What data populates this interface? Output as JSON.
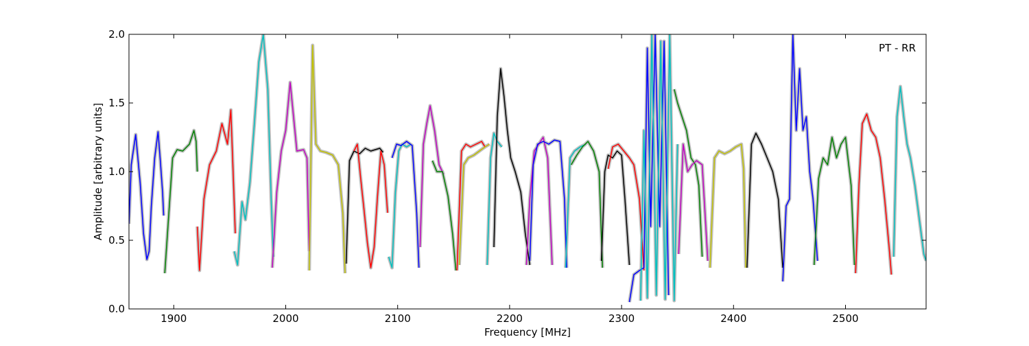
{
  "chart_data": {
    "type": "line",
    "title": "",
    "annotation": "PT - RR",
    "xlabel": "Frequency [MHz]",
    "ylabel": "Amplitude [arbitrary units]",
    "xlim": [
      1860,
      2572
    ],
    "ylim": [
      0.0,
      2.0
    ],
    "x_ticks": [
      1900,
      2000,
      2100,
      2200,
      2300,
      2400,
      2500
    ],
    "y_ticks": [
      "0.0",
      "0.5",
      "1.0",
      "1.5",
      "2.0"
    ],
    "grid": false,
    "background_color": "#c0c0c0",
    "series": [
      {
        "color": "#0000ff",
        "x": [
          1860,
          1862,
          1866,
          1870,
          1873,
          1876,
          1878,
          1880,
          1883,
          1886,
          1888,
          1890,
          1891
        ],
        "y": [
          0.62,
          1.05,
          1.27,
          0.92,
          0.55,
          0.36,
          0.42,
          0.75,
          1.1,
          1.29,
          1.08,
          0.85,
          0.68
        ]
      },
      {
        "color": "#008000",
        "x": [
          1892,
          1895,
          1899,
          1903,
          1908,
          1914,
          1918,
          1920,
          1921
        ],
        "y": [
          0.26,
          0.62,
          1.1,
          1.16,
          1.15,
          1.2,
          1.3,
          1.22,
          1.0
        ]
      },
      {
        "color": "#ff0000",
        "x": [
          1921,
          1923,
          1927,
          1932,
          1938,
          1943,
          1948,
          1951,
          1953,
          1955
        ],
        "y": [
          0.6,
          0.28,
          0.8,
          1.05,
          1.15,
          1.35,
          1.2,
          1.45,
          1.0,
          0.55
        ]
      },
      {
        "color": "#00bfbf",
        "x": [
          1954,
          1957,
          1961,
          1964,
          1968,
          1972,
          1976,
          1980,
          1984,
          1987,
          1989
        ],
        "y": [
          0.42,
          0.32,
          0.78,
          0.65,
          0.92,
          1.35,
          1.8,
          2.0,
          1.6,
          0.8,
          0.38
        ]
      },
      {
        "color": "#bf00bf",
        "x": [
          1988,
          1992,
          1996,
          2000,
          2004,
          2010,
          2016,
          2019,
          2021
        ],
        "y": [
          0.3,
          0.85,
          1.15,
          1.3,
          1.65,
          1.15,
          1.16,
          1.1,
          0.42
        ]
      },
      {
        "color": "#bfbf00",
        "x": [
          2021,
          2024,
          2027,
          2031,
          2036,
          2042,
          2047,
          2051,
          2053
        ],
        "y": [
          0.28,
          1.92,
          1.2,
          1.15,
          1.14,
          1.12,
          1.05,
          0.7,
          0.26
        ]
      },
      {
        "color": "#000000",
        "x": [
          2054,
          2057,
          2061,
          2066,
          2071,
          2076,
          2080,
          2084,
          2087
        ],
        "y": [
          0.33,
          1.08,
          1.15,
          1.13,
          1.17,
          1.15,
          1.16,
          1.17,
          1.14
        ]
      },
      {
        "color": "#ff0000",
        "x": [
          2061,
          2064,
          2067,
          2070,
          2073,
          2076,
          2079,
          2082,
          2085,
          2088,
          2091
        ],
        "y": [
          1.15,
          1.2,
          0.95,
          0.72,
          0.48,
          0.3,
          0.45,
          0.82,
          1.15,
          1.05,
          0.7
        ]
      },
      {
        "color": "#00bfbf",
        "x": [
          2092,
          2095,
          2098,
          2101,
          2104,
          2108,
          2112
        ],
        "y": [
          0.38,
          0.3,
          0.85,
          1.15,
          1.2,
          1.18,
          1.2
        ]
      },
      {
        "color": "#0000ff",
        "x": [
          2095,
          2099,
          2103,
          2108,
          2113,
          2117,
          2119
        ],
        "y": [
          1.1,
          1.2,
          1.19,
          1.22,
          1.19,
          0.7,
          0.3
        ]
      },
      {
        "color": "#bf00bf",
        "x": [
          2120,
          2123,
          2126,
          2129,
          2133,
          2137,
          2141
        ],
        "y": [
          0.45,
          1.2,
          1.35,
          1.48,
          1.3,
          1.05,
          0.98
        ]
      },
      {
        "color": "#008000",
        "x": [
          2131,
          2135,
          2140,
          2145,
          2149,
          2152
        ],
        "y": [
          1.08,
          1.0,
          1.0,
          0.82,
          0.55,
          0.28
        ]
      },
      {
        "color": "#ff0000",
        "x": [
          2153,
          2157,
          2161,
          2165,
          2170,
          2175,
          2178
        ],
        "y": [
          0.28,
          1.15,
          1.2,
          1.18,
          1.2,
          1.22,
          1.18
        ]
      },
      {
        "color": "#bfbf00",
        "x": [
          2155,
          2159,
          2163,
          2168,
          2173,
          2178,
          2182
        ],
        "y": [
          0.32,
          1.05,
          1.1,
          1.12,
          1.15,
          1.18,
          1.2
        ]
      },
      {
        "color": "#00bfbf",
        "x": [
          2180,
          2183,
          2186,
          2189,
          2193
        ],
        "y": [
          0.32,
          1.1,
          1.28,
          1.22,
          1.18
        ]
      },
      {
        "color": "#000000",
        "x": [
          2186,
          2189,
          2192,
          2195,
          2198,
          2201,
          2205,
          2210,
          2214,
          2218
        ],
        "y": [
          0.45,
          1.4,
          1.75,
          1.55,
          1.3,
          1.1,
          1.0,
          0.85,
          0.55,
          0.32
        ]
      },
      {
        "color": "#bf00bf",
        "x": [
          2215,
          2218,
          2222,
          2226,
          2230,
          2234,
          2238
        ],
        "y": [
          0.32,
          0.8,
          1.15,
          1.2,
          1.25,
          1.1,
          0.32
        ]
      },
      {
        "color": "#0000ff",
        "x": [
          2218,
          2221,
          2225,
          2230,
          2235,
          2240,
          2245,
          2249,
          2251
        ],
        "y": [
          0.35,
          1.05,
          1.2,
          1.22,
          1.2,
          1.23,
          1.22,
          0.8,
          0.3
        ]
      },
      {
        "color": "#00bfbf",
        "x": [
          2250,
          2254,
          2258,
          2263,
          2268
        ],
        "y": [
          0.3,
          1.1,
          1.15,
          1.18,
          1.2
        ]
      },
      {
        "color": "#008000",
        "x": [
          2255,
          2260,
          2265,
          2270,
          2275,
          2280,
          2283
        ],
        "y": [
          1.05,
          1.12,
          1.18,
          1.22,
          1.15,
          1.0,
          0.3
        ]
      },
      {
        "color": "#000000",
        "x": [
          2282,
          2285,
          2288,
          2292,
          2296,
          2300,
          2303,
          2307
        ],
        "y": [
          0.35,
          1.0,
          1.12,
          1.1,
          1.15,
          1.12,
          0.8,
          0.32
        ]
      },
      {
        "color": "#ff0000",
        "x": [
          2288,
          2292,
          2297,
          2302,
          2307,
          2311,
          2316,
          2320
        ],
        "y": [
          1.02,
          1.18,
          1.2,
          1.15,
          1.1,
          1.05,
          0.8,
          0.28
        ]
      },
      {
        "color": "#0000ff",
        "x": [
          2307,
          2311,
          2316,
          2320,
          2323,
          2326,
          2330,
          2334,
          2338,
          2342
        ],
        "y": [
          0.05,
          0.25,
          0.28,
          0.3,
          1.9,
          0.6,
          2.0,
          0.6,
          1.95,
          0.1
        ]
      },
      {
        "color": "#00bfbf",
        "x": [
          2317,
          2320,
          2323,
          2327,
          2331,
          2335,
          2339,
          2343,
          2347,
          2350
        ],
        "y": [
          0.06,
          1.3,
          0.08,
          2.0,
          0.1,
          1.95,
          0.07,
          2.0,
          0.06,
          1.2
        ]
      },
      {
        "color": "#008000",
        "x": [
          2347,
          2350,
          2354,
          2358,
          2362,
          2366,
          2369,
          2372
        ],
        "y": [
          1.6,
          1.5,
          1.4,
          1.3,
          1.1,
          1.05,
          0.9,
          0.38
        ]
      },
      {
        "color": "#bf00bf",
        "x": [
          2351,
          2355,
          2359,
          2363,
          2367,
          2372,
          2377
        ],
        "y": [
          0.4,
          1.2,
          1.0,
          1.05,
          1.08,
          1.05,
          0.35
        ]
      },
      {
        "color": "#bfbf00",
        "x": [
          2379,
          2383,
          2387,
          2392,
          2397,
          2402,
          2407,
          2409,
          2411
        ],
        "y": [
          0.3,
          1.1,
          1.15,
          1.13,
          1.15,
          1.18,
          1.2,
          1.02,
          0.3
        ]
      },
      {
        "color": "#000000",
        "x": [
          2412,
          2416,
          2420,
          2425,
          2430,
          2435,
          2440,
          2444
        ],
        "y": [
          0.3,
          1.2,
          1.28,
          1.2,
          1.1,
          1.0,
          0.8,
          0.3
        ]
      },
      {
        "color": "#0000ff",
        "x": [
          2444,
          2447,
          2450,
          2453,
          2456,
          2459,
          2462,
          2465,
          2468,
          2471,
          2475
        ],
        "y": [
          0.2,
          0.75,
          0.8,
          2.0,
          1.3,
          1.75,
          1.3,
          1.4,
          1.0,
          0.8,
          0.35
        ]
      },
      {
        "color": "#008000",
        "x": [
          2472,
          2476,
          2480,
          2484,
          2488,
          2492,
          2496,
          2500,
          2505,
          2508
        ],
        "y": [
          0.32,
          0.95,
          1.1,
          1.05,
          1.25,
          1.1,
          1.2,
          1.25,
          0.9,
          0.32
        ]
      },
      {
        "color": "#ff0000",
        "x": [
          2509,
          2512,
          2515,
          2519,
          2523,
          2527,
          2531,
          2535,
          2539,
          2541
        ],
        "y": [
          0.26,
          0.9,
          1.35,
          1.42,
          1.3,
          1.25,
          1.1,
          0.8,
          0.45,
          0.25
        ]
      },
      {
        "color": "#00bfbf",
        "x": [
          2543,
          2546,
          2549,
          2552,
          2555,
          2558,
          2562,
          2566,
          2570,
          2572
        ],
        "y": [
          0.38,
          1.4,
          1.62,
          1.4,
          1.2,
          1.1,
          0.9,
          0.65,
          0.4,
          0.35
        ]
      }
    ]
  }
}
